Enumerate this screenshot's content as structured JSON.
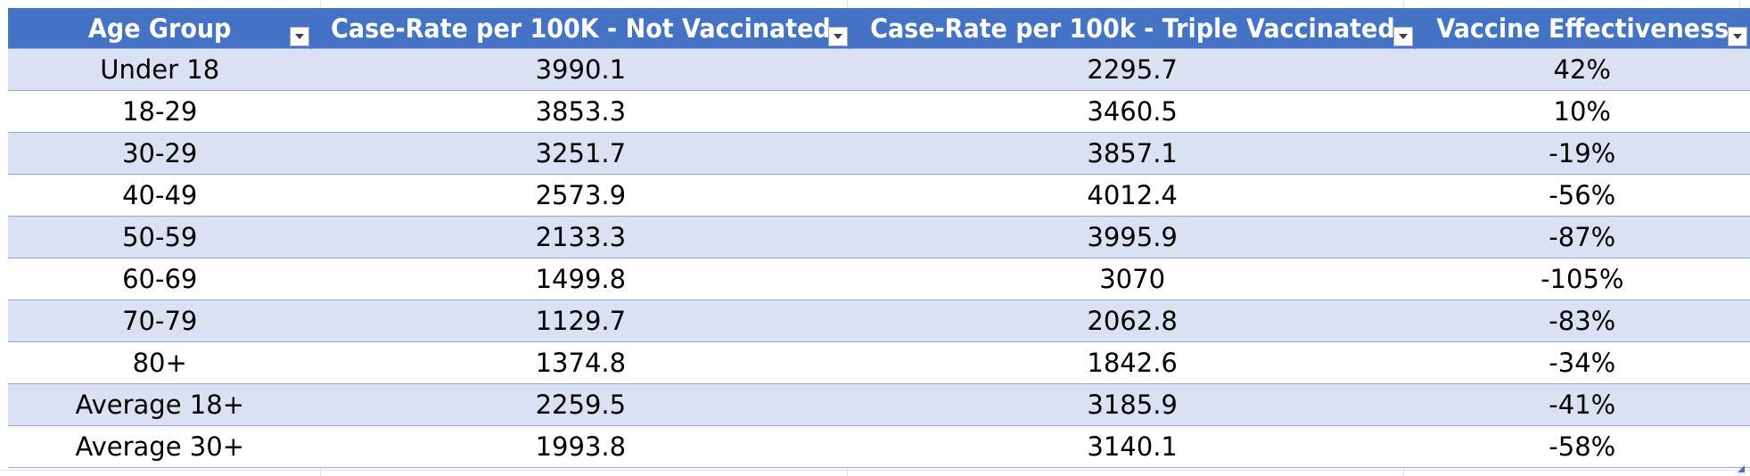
{
  "table": {
    "headers": [
      "Age Group",
      "Case-Rate per 100K - Not Vaccinated",
      "Case-Rate per 100k - Triple Vaccinated",
      "Vaccine Effectiveness"
    ],
    "filter_icon": "dropdown-arrow-icon",
    "rows": [
      [
        "Under 18",
        "3990.1",
        "2295.7",
        "42%"
      ],
      [
        "18-29",
        "3853.3",
        "3460.5",
        "10%"
      ],
      [
        "30-29",
        "3251.7",
        "3857.1",
        "-19%"
      ],
      [
        "40-49",
        "2573.9",
        "4012.4",
        "-56%"
      ],
      [
        "50-59",
        "2133.3",
        "3995.9",
        "-87%"
      ],
      [
        "60-69",
        "1499.8",
        "3070",
        "-105%"
      ],
      [
        "70-79",
        "1129.7",
        "2062.8",
        "-83%"
      ],
      [
        "80+",
        "1374.8",
        "1842.6",
        "-34%"
      ],
      [
        "Average 18+",
        "2259.5",
        "3185.9",
        "-41%"
      ],
      [
        "Average 30+",
        "1993.8",
        "3140.1",
        "-58%"
      ]
    ]
  },
  "colors": {
    "header_bg": "#4472c4",
    "band_bg": "#d9e1f2",
    "border": "#8eaadb"
  }
}
